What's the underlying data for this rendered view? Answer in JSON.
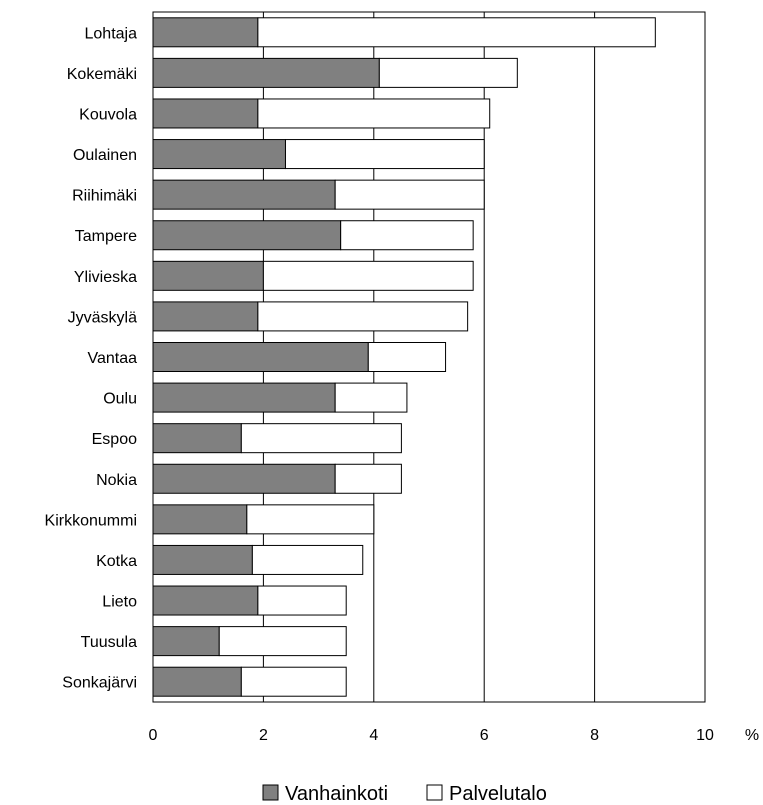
{
  "chart_data": {
    "type": "bar",
    "orientation": "horizontal",
    "stacked": true,
    "categories": [
      "Lohtaja",
      "Kokemäki",
      "Kouvola",
      "Oulainen",
      "Riihimäki",
      "Tampere",
      "Ylivieska",
      "Jyväskylä",
      "Vantaa",
      "Oulu",
      "Espoo",
      "Nokia",
      "Kirkkonummi",
      "Kotka",
      "Lieto",
      "Tuusula",
      "Sonkajärvi"
    ],
    "series": [
      {
        "name": "Vanhainkoti",
        "color": "#808080",
        "values": [
          1.9,
          4.1,
          1.9,
          2.4,
          3.3,
          3.4,
          2.0,
          1.9,
          3.9,
          3.3,
          1.6,
          3.3,
          1.7,
          1.8,
          1.9,
          1.2,
          1.6
        ]
      },
      {
        "name": "Palvelutalo",
        "color": "#ffffff",
        "values": [
          7.2,
          2.5,
          4.2,
          3.6,
          2.7,
          2.4,
          3.8,
          3.8,
          1.4,
          1.3,
          2.9,
          1.2,
          2.3,
          2.0,
          1.6,
          2.3,
          1.9
        ]
      }
    ],
    "xlim": [
      0,
      10
    ],
    "xticks": [
      "0",
      "2",
      "4",
      "6",
      "8",
      "10"
    ],
    "unit": "%",
    "grid": "vertical",
    "legend_position": "bottom"
  }
}
